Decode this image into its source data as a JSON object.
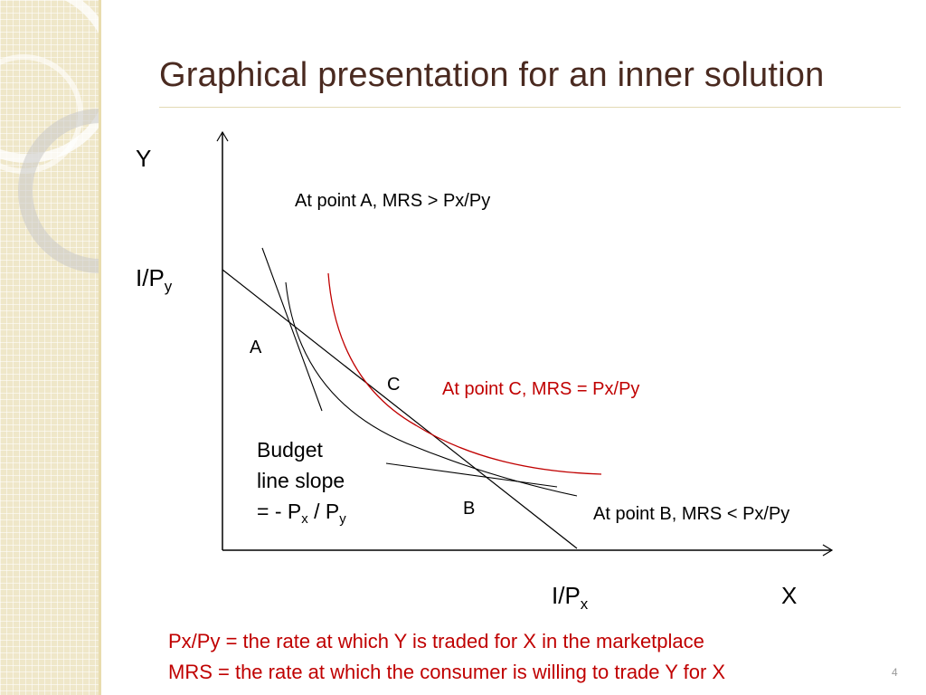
{
  "slide": {
    "title": "Graphical presentation for an inner solution",
    "page_number": "4"
  },
  "diagram": {
    "y_axis_label": "Y",
    "x_axis_label": "X",
    "y_intercept_label": "I/P",
    "y_intercept_sub": "y",
    "x_intercept_label": "I/P",
    "x_intercept_sub": "x",
    "point_a": "A",
    "point_b": "B",
    "point_c": "C",
    "note_a": "At point A, MRS > Px/Py",
    "note_b": "At point B, MRS < Px/Py",
    "note_c": "At point C, MRS = Px/Py",
    "slope_line1": "Budget",
    "slope_line2": "line slope",
    "slope_line3_a": "= - P",
    "slope_line3_sub1": "x",
    "slope_line3_b": " / P",
    "slope_line3_sub2": "y",
    "colors": {
      "title": "#4a2a20",
      "tangent_curve": "#c00000",
      "line": "#000000"
    }
  },
  "footer": {
    "line1": "Px/Py = the rate at which Y is traded for X in the marketplace",
    "line2": "MRS = the rate at which the consumer is willing to trade Y for X"
  }
}
